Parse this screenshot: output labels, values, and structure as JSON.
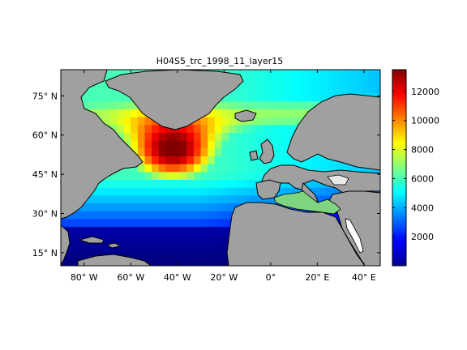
{
  "title": "H04S5_trc_1998_11_layer15",
  "map": {
    "lon_range": [
      -90,
      47
    ],
    "lat_range": [
      10,
      85
    ],
    "lat_ticks": [
      {
        "value": 75,
        "label": "75° N"
      },
      {
        "value": 60,
        "label": "60° N"
      },
      {
        "value": 45,
        "label": "45° N"
      },
      {
        "value": 30,
        "label": "30° N"
      },
      {
        "value": 15,
        "label": "15° N"
      }
    ],
    "lon_ticks": [
      {
        "value": -80,
        "label": "80° W"
      },
      {
        "value": -60,
        "label": "60° W"
      },
      {
        "value": -40,
        "label": "40° W"
      },
      {
        "value": -20,
        "label": "20° W"
      },
      {
        "value": 0,
        "label": "0°"
      },
      {
        "value": 20,
        "label": "20° E"
      },
      {
        "value": 40,
        "label": "40° E"
      }
    ],
    "land_color": "#a0a0a0",
    "nodata_color": "#ffffff"
  },
  "colorbar": {
    "range": [
      0,
      13500
    ],
    "ticks": [
      {
        "value": 2000,
        "label": "2000"
      },
      {
        "value": 4000,
        "label": "4000"
      },
      {
        "value": 6000,
        "label": "6000"
      },
      {
        "value": 8000,
        "label": "8000"
      },
      {
        "value": 10000,
        "label": "10000"
      },
      {
        "value": 12000,
        "label": "12000"
      }
    ],
    "colormap": "jet"
  }
}
